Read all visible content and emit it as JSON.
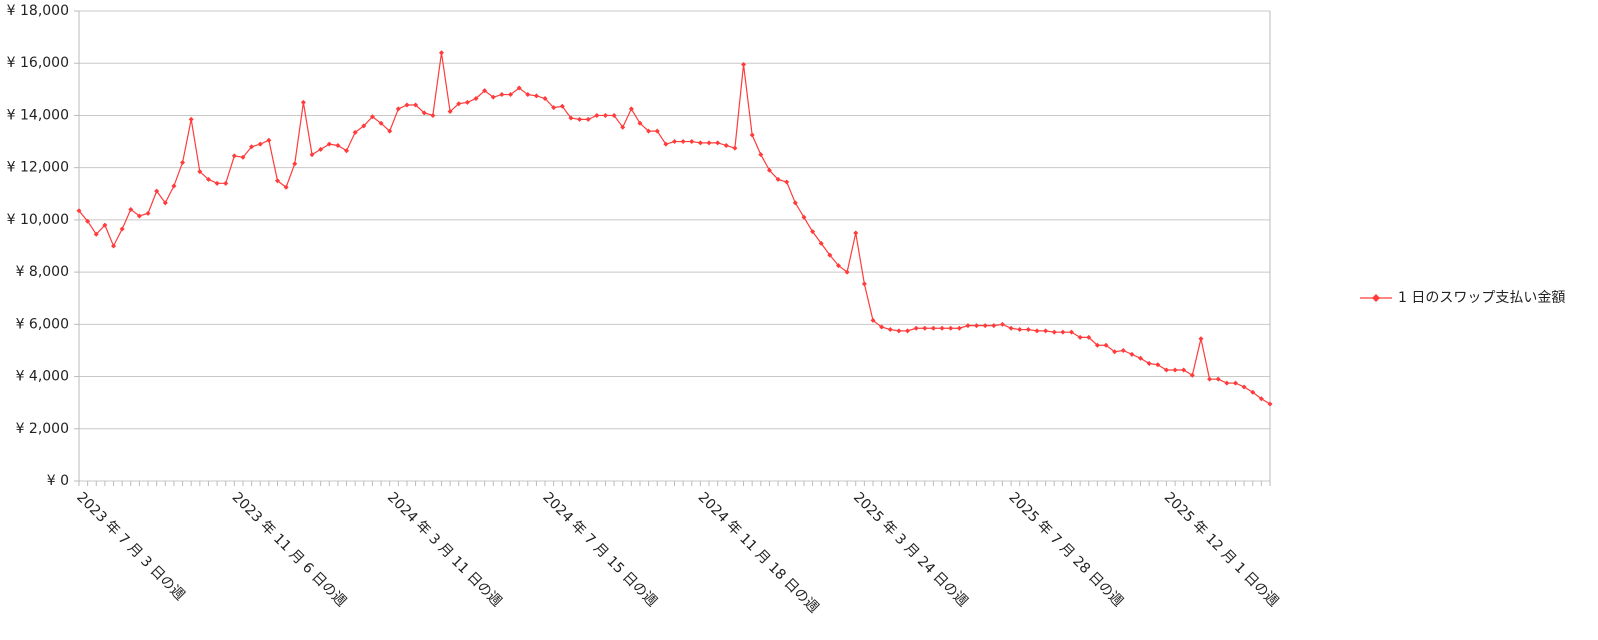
{
  "chart_data": {
    "type": "line",
    "categories": [
      "2023 年 7 月 3 日の週",
      null,
      null,
      null,
      null,
      null,
      null,
      null,
      null,
      null,
      null,
      null,
      null,
      null,
      null,
      null,
      null,
      null,
      "2023 年 11 月 6 日の週",
      null,
      null,
      null,
      null,
      null,
      null,
      null,
      null,
      null,
      null,
      null,
      null,
      null,
      null,
      null,
      null,
      null,
      "2024 年 3 月 11 日の週",
      null,
      null,
      null,
      null,
      null,
      null,
      null,
      null,
      null,
      null,
      null,
      null,
      null,
      null,
      null,
      null,
      null,
      "2024 年 7 月 15 日の週",
      null,
      null,
      null,
      null,
      null,
      null,
      null,
      null,
      null,
      null,
      null,
      null,
      null,
      null,
      null,
      null,
      null,
      "2024 年 11 月 18 日の週",
      null,
      null,
      null,
      null,
      null,
      null,
      null,
      null,
      null,
      null,
      null,
      null,
      null,
      null,
      null,
      null,
      null,
      "2025 年 3 月 24 日の週",
      null,
      null,
      null,
      null,
      null,
      null,
      null,
      null,
      null,
      null,
      null,
      null,
      null,
      null,
      null,
      null,
      null,
      "2025 年 7 月 28 日の週",
      null,
      null,
      null,
      null,
      null,
      null,
      null,
      null,
      null,
      null,
      null,
      null,
      null,
      null,
      null,
      null,
      null,
      "2025 年 12 月 1 日の週",
      null,
      null,
      null,
      null,
      null,
      null,
      null,
      null,
      null,
      null,
      null,
      null
    ],
    "series": [
      {
        "name": "1 日のスワップ支払い金額",
        "color": "#ff3b3b",
        "values": [
          10350,
          9950,
          9450,
          9800,
          9000,
          9650,
          10400,
          10150,
          10250,
          11100,
          10650,
          11300,
          12200,
          13850,
          11850,
          11550,
          11400,
          11400,
          12450,
          12400,
          12800,
          12900,
          13050,
          11500,
          11250,
          12150,
          14500,
          12500,
          12700,
          12900,
          12850,
          12650,
          13350,
          13600,
          13950,
          13700,
          13400,
          14250,
          14400,
          14400,
          14100,
          14000,
          16400,
          14150,
          14450,
          14500,
          14650,
          14950,
          14700,
          14800,
          14800,
          15050,
          14800,
          14750,
          14650,
          14300,
          14350,
          13900,
          13850,
          13850,
          14000,
          14000,
          14000,
          13550,
          14250,
          13700,
          13400,
          13400,
          12900,
          13000,
          13000,
          13000,
          12950,
          12950,
          12950,
          12850,
          12750,
          15950,
          13250,
          12500,
          11900,
          11550,
          11450,
          10650,
          10100,
          9550,
          9100,
          8650,
          8250,
          8000,
          9500,
          7550,
          6150,
          5900,
          5800,
          5750,
          5750,
          5850,
          5850,
          5850,
          5850,
          5850,
          5850,
          5950,
          5950,
          5950,
          5950,
          6000,
          5850,
          5800,
          5800,
          5750,
          5750,
          5700,
          5700,
          5700,
          5500,
          5500,
          5200,
          5200,
          4950,
          5000,
          4850,
          4700,
          4500,
          4450,
          4250,
          4250,
          4250,
          4050,
          5450,
          3900,
          3900,
          3750,
          3750,
          3600,
          3400,
          3150,
          2950
        ]
      }
    ],
    "ylim": [
      0,
      18000
    ],
    "yticks": [
      {
        "value": 0,
        "label": "¥ 0"
      },
      {
        "value": 2000,
        "label": "¥ 2,000"
      },
      {
        "value": 4000,
        "label": "¥ 4,000"
      },
      {
        "value": 6000,
        "label": "¥ 6,000"
      },
      {
        "value": 8000,
        "label": "¥ 8,000"
      },
      {
        "value": 10000,
        "label": "¥ 10,000"
      },
      {
        "value": 12000,
        "label": "¥ 12,000"
      },
      {
        "value": 14000,
        "label": "¥ 14,000"
      },
      {
        "value": 16000,
        "label": "¥ 16,000"
      },
      {
        "value": 18000,
        "label": "¥ 18,000"
      }
    ],
    "grid": true,
    "legend": "right",
    "marker": "diamond"
  }
}
